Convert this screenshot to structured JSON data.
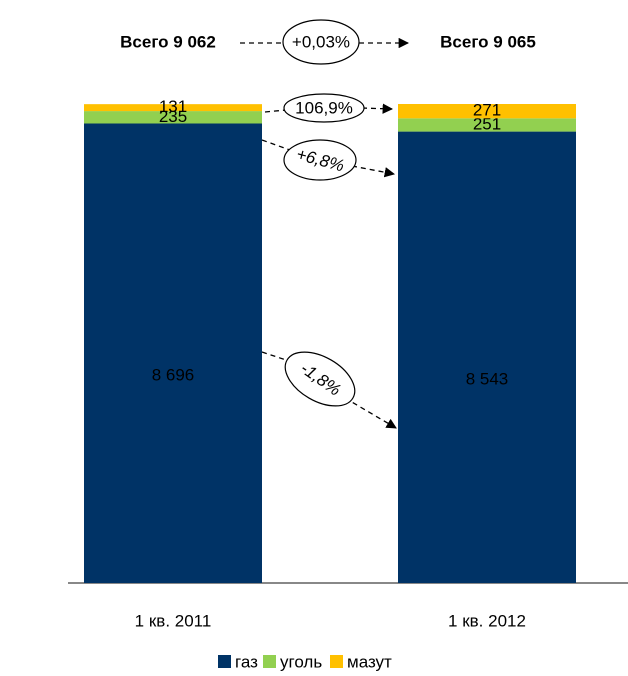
{
  "chart_data": {
    "type": "stacked_bar",
    "categories": [
      "1 кв. 2011",
      "1 кв. 2012"
    ],
    "series": [
      {
        "name": "газ",
        "color": "#003366",
        "values": [
          8696,
          8543
        ],
        "value_labels": [
          "8 696",
          "8 543"
        ]
      },
      {
        "name": "уголь",
        "color": "#92d050",
        "values": [
          235,
          251
        ]
      },
      {
        "name": "мазут",
        "color": "#ffc000",
        "values": [
          131,
          271
        ]
      }
    ],
    "ylim": [
      0,
      9065
    ],
    "annotations": [
      "Всего 9 062",
      "Всего 9 065",
      "+0,03%",
      "106,9%",
      "+6,8%",
      "-1,8%"
    ]
  }
}
